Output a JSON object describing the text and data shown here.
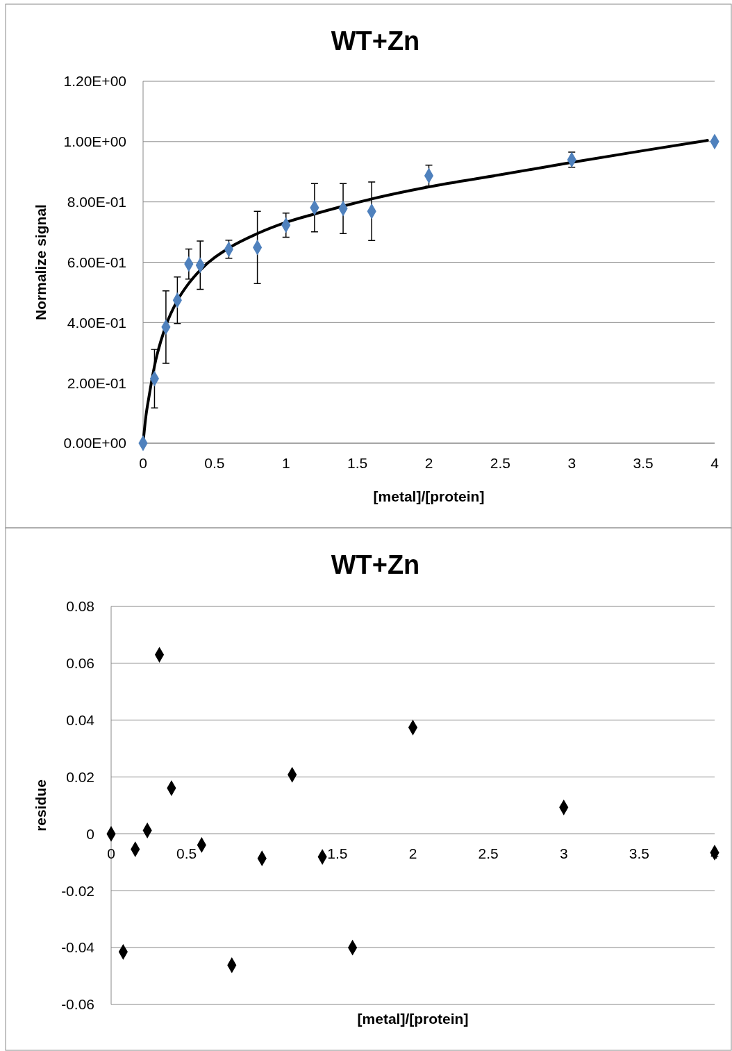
{
  "chart_data": [
    {
      "type": "scatter",
      "title": "WT+Zn",
      "xlabel": "[metal]/[protein]",
      "ylabel": "Normalize signal",
      "xlim": [
        0,
        4
      ],
      "xticks": [
        0,
        0.5,
        1,
        1.5,
        2,
        2.5,
        3,
        3.5,
        4
      ],
      "ylim": [
        0,
        1.2
      ],
      "yticks": [
        {
          "value": 0,
          "label": "0.00E+00"
        },
        {
          "value": 0.2,
          "label": "2.00E-01"
        },
        {
          "value": 0.4,
          "label": "4.00E-01"
        },
        {
          "value": 0.6,
          "label": "6.00E-01"
        },
        {
          "value": 0.8,
          "label": "8.00E-01"
        },
        {
          "value": 1.0,
          "label": "1.00E+00"
        },
        {
          "value": 1.2,
          "label": "1.20E+00"
        }
      ],
      "grid": "y",
      "marker": "diamond",
      "series": [
        {
          "type": "line",
          "marker": "none",
          "color": "#000000",
          "x": [
            0,
            0.02,
            0.04,
            0.08,
            0.16,
            0.24,
            0.32,
            0.4,
            0.6,
            0.8,
            1.0,
            1.2,
            1.4,
            1.6,
            2,
            2.5,
            3,
            3.5,
            3.95
          ],
          "values": [
            0,
            0.09,
            0.15,
            0.256,
            0.39,
            0.473,
            0.53,
            0.574,
            0.647,
            0.695,
            0.732,
            0.76,
            0.786,
            0.81,
            0.85,
            0.89,
            0.931,
            0.97,
            1.004
          ]
        },
        {
          "color": "#4f81bd",
          "x": [
            0,
            0.08,
            0.16,
            0.24,
            0.32,
            0.4,
            0.6,
            0.8,
            1.0,
            1.2,
            1.4,
            1.6,
            2,
            3,
            4
          ],
          "values": [
            0,
            0.214,
            0.385,
            0.474,
            0.594,
            0.59,
            0.643,
            0.649,
            0.723,
            0.781,
            0.778,
            0.769,
            0.887,
            0.94,
            1.0
          ],
          "errors": [
            null,
            0.097,
            0.12,
            0.077,
            0.05,
            0.08,
            0.03,
            0.12,
            0.04,
            0.08,
            0.083,
            0.097,
            0.035,
            0.025,
            null
          ]
        }
      ]
    },
    {
      "type": "scatter",
      "title": "WT+Zn",
      "xlabel": "[metal]/[protein]",
      "ylabel": "residue",
      "xlim": [
        0,
        4
      ],
      "xticks": [
        0,
        0.5,
        1.5,
        2,
        2.5,
        3,
        3.5,
        4
      ],
      "ylim": [
        -0.06,
        0.08
      ],
      "yticks": [
        -0.06,
        -0.04,
        -0.02,
        0,
        0.02,
        0.04,
        0.06,
        0.08
      ],
      "grid": "y",
      "marker": "diamond",
      "series": [
        {
          "color": "#000000",
          "x": [
            0,
            0.08,
            0.16,
            0.24,
            0.32,
            0.4,
            0.6,
            0.8,
            1.0,
            1.2,
            1.4,
            1.6,
            2,
            3,
            4
          ],
          "values": [
            0,
            -0.0415,
            -0.0054,
            0.0012,
            0.063,
            0.0161,
            -0.0039,
            -0.0462,
            -0.0086,
            0.0208,
            -0.0081,
            -0.04,
            0.0374,
            0.0093,
            -0.0066
          ]
        }
      ]
    }
  ]
}
